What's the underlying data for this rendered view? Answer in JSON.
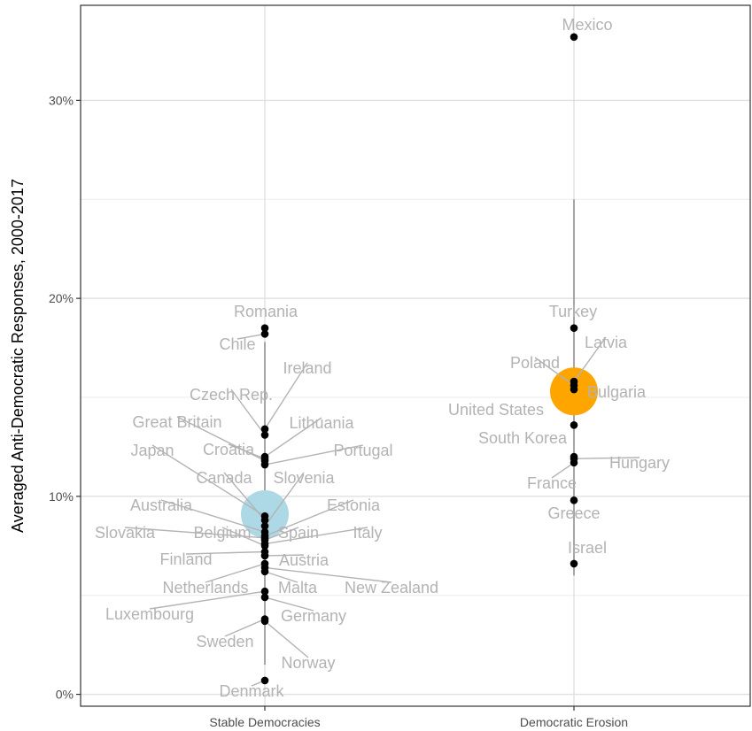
{
  "chart_data": {
    "type": "scatter",
    "ylabel": "Averaged Anti-Democratic Responses, 2000-2017",
    "xlabel": "",
    "categories": [
      "Stable Democracies",
      "Democratic Erosion"
    ],
    "ylim": [
      -0.6,
      34.8
    ],
    "yticks": [
      {
        "value": 0,
        "label": "0%"
      },
      {
        "value": 10,
        "label": "10%"
      },
      {
        "value": 20,
        "label": "20%"
      },
      {
        "value": 30,
        "label": "30%"
      }
    ],
    "grid": true,
    "series": [
      {
        "category": "Stable Democracies",
        "mean": 9.1,
        "mean_color": "#add8e6",
        "interval": [
          1.5,
          17.8
        ],
        "points": [
          {
            "country": "Romania",
            "value": 18.5
          },
          {
            "country": "Chile",
            "value": 18.2
          },
          {
            "country": "Ireland",
            "value": 13.4
          },
          {
            "country": "Czech Rep.",
            "value": 13.1
          },
          {
            "country": "Lithuania",
            "value": 12.0
          },
          {
            "country": "Great Britain",
            "value": 11.8
          },
          {
            "country": "Portugal",
            "value": 11.6
          },
          {
            "country": "Croatia",
            "value": 11.9
          },
          {
            "country": "Japan",
            "value": 9.0
          },
          {
            "country": "Canada",
            "value": 8.8
          },
          {
            "country": "Slovenia",
            "value": 8.5
          },
          {
            "country": "Australia",
            "value": 8.2
          },
          {
            "country": "Estonia",
            "value": 8.0
          },
          {
            "country": "Slovakia",
            "value": 7.9
          },
          {
            "country": "Belgium",
            "value": 7.5
          },
          {
            "country": "Spain",
            "value": 7.8
          },
          {
            "country": "Italy",
            "value": 7.6
          },
          {
            "country": "Finland",
            "value": 7.2
          },
          {
            "country": "Austria",
            "value": 7.0
          },
          {
            "country": "Netherlands",
            "value": 6.6
          },
          {
            "country": "Malta",
            "value": 6.2
          },
          {
            "country": "New Zealand",
            "value": 6.4
          },
          {
            "country": "Luxembourg",
            "value": 5.2
          },
          {
            "country": "Germany",
            "value": 4.9
          },
          {
            "country": "Sweden",
            "value": 3.8
          },
          {
            "country": "Norway",
            "value": 3.7
          },
          {
            "country": "Denmark",
            "value": 0.7
          }
        ]
      },
      {
        "category": "Democratic Erosion",
        "mean": 15.3,
        "mean_color": "#ffa500",
        "interval": [
          6.0,
          25.0
        ],
        "points": [
          {
            "country": "Mexico",
            "value": 33.2
          },
          {
            "country": "Turkey",
            "value": 18.5
          },
          {
            "country": "Latvia",
            "value": 15.8
          },
          {
            "country": "Poland",
            "value": 15.6
          },
          {
            "country": "Bulgaria",
            "value": 15.4
          },
          {
            "country": "United States",
            "value": 13.6
          },
          {
            "country": "South Korea",
            "value": 12.0
          },
          {
            "country": "Hungary",
            "value": 11.9
          },
          {
            "country": "France",
            "value": 11.7
          },
          {
            "country": "Greece",
            "value": 9.8
          },
          {
            "country": "Israel",
            "value": 6.6
          }
        ]
      }
    ]
  }
}
